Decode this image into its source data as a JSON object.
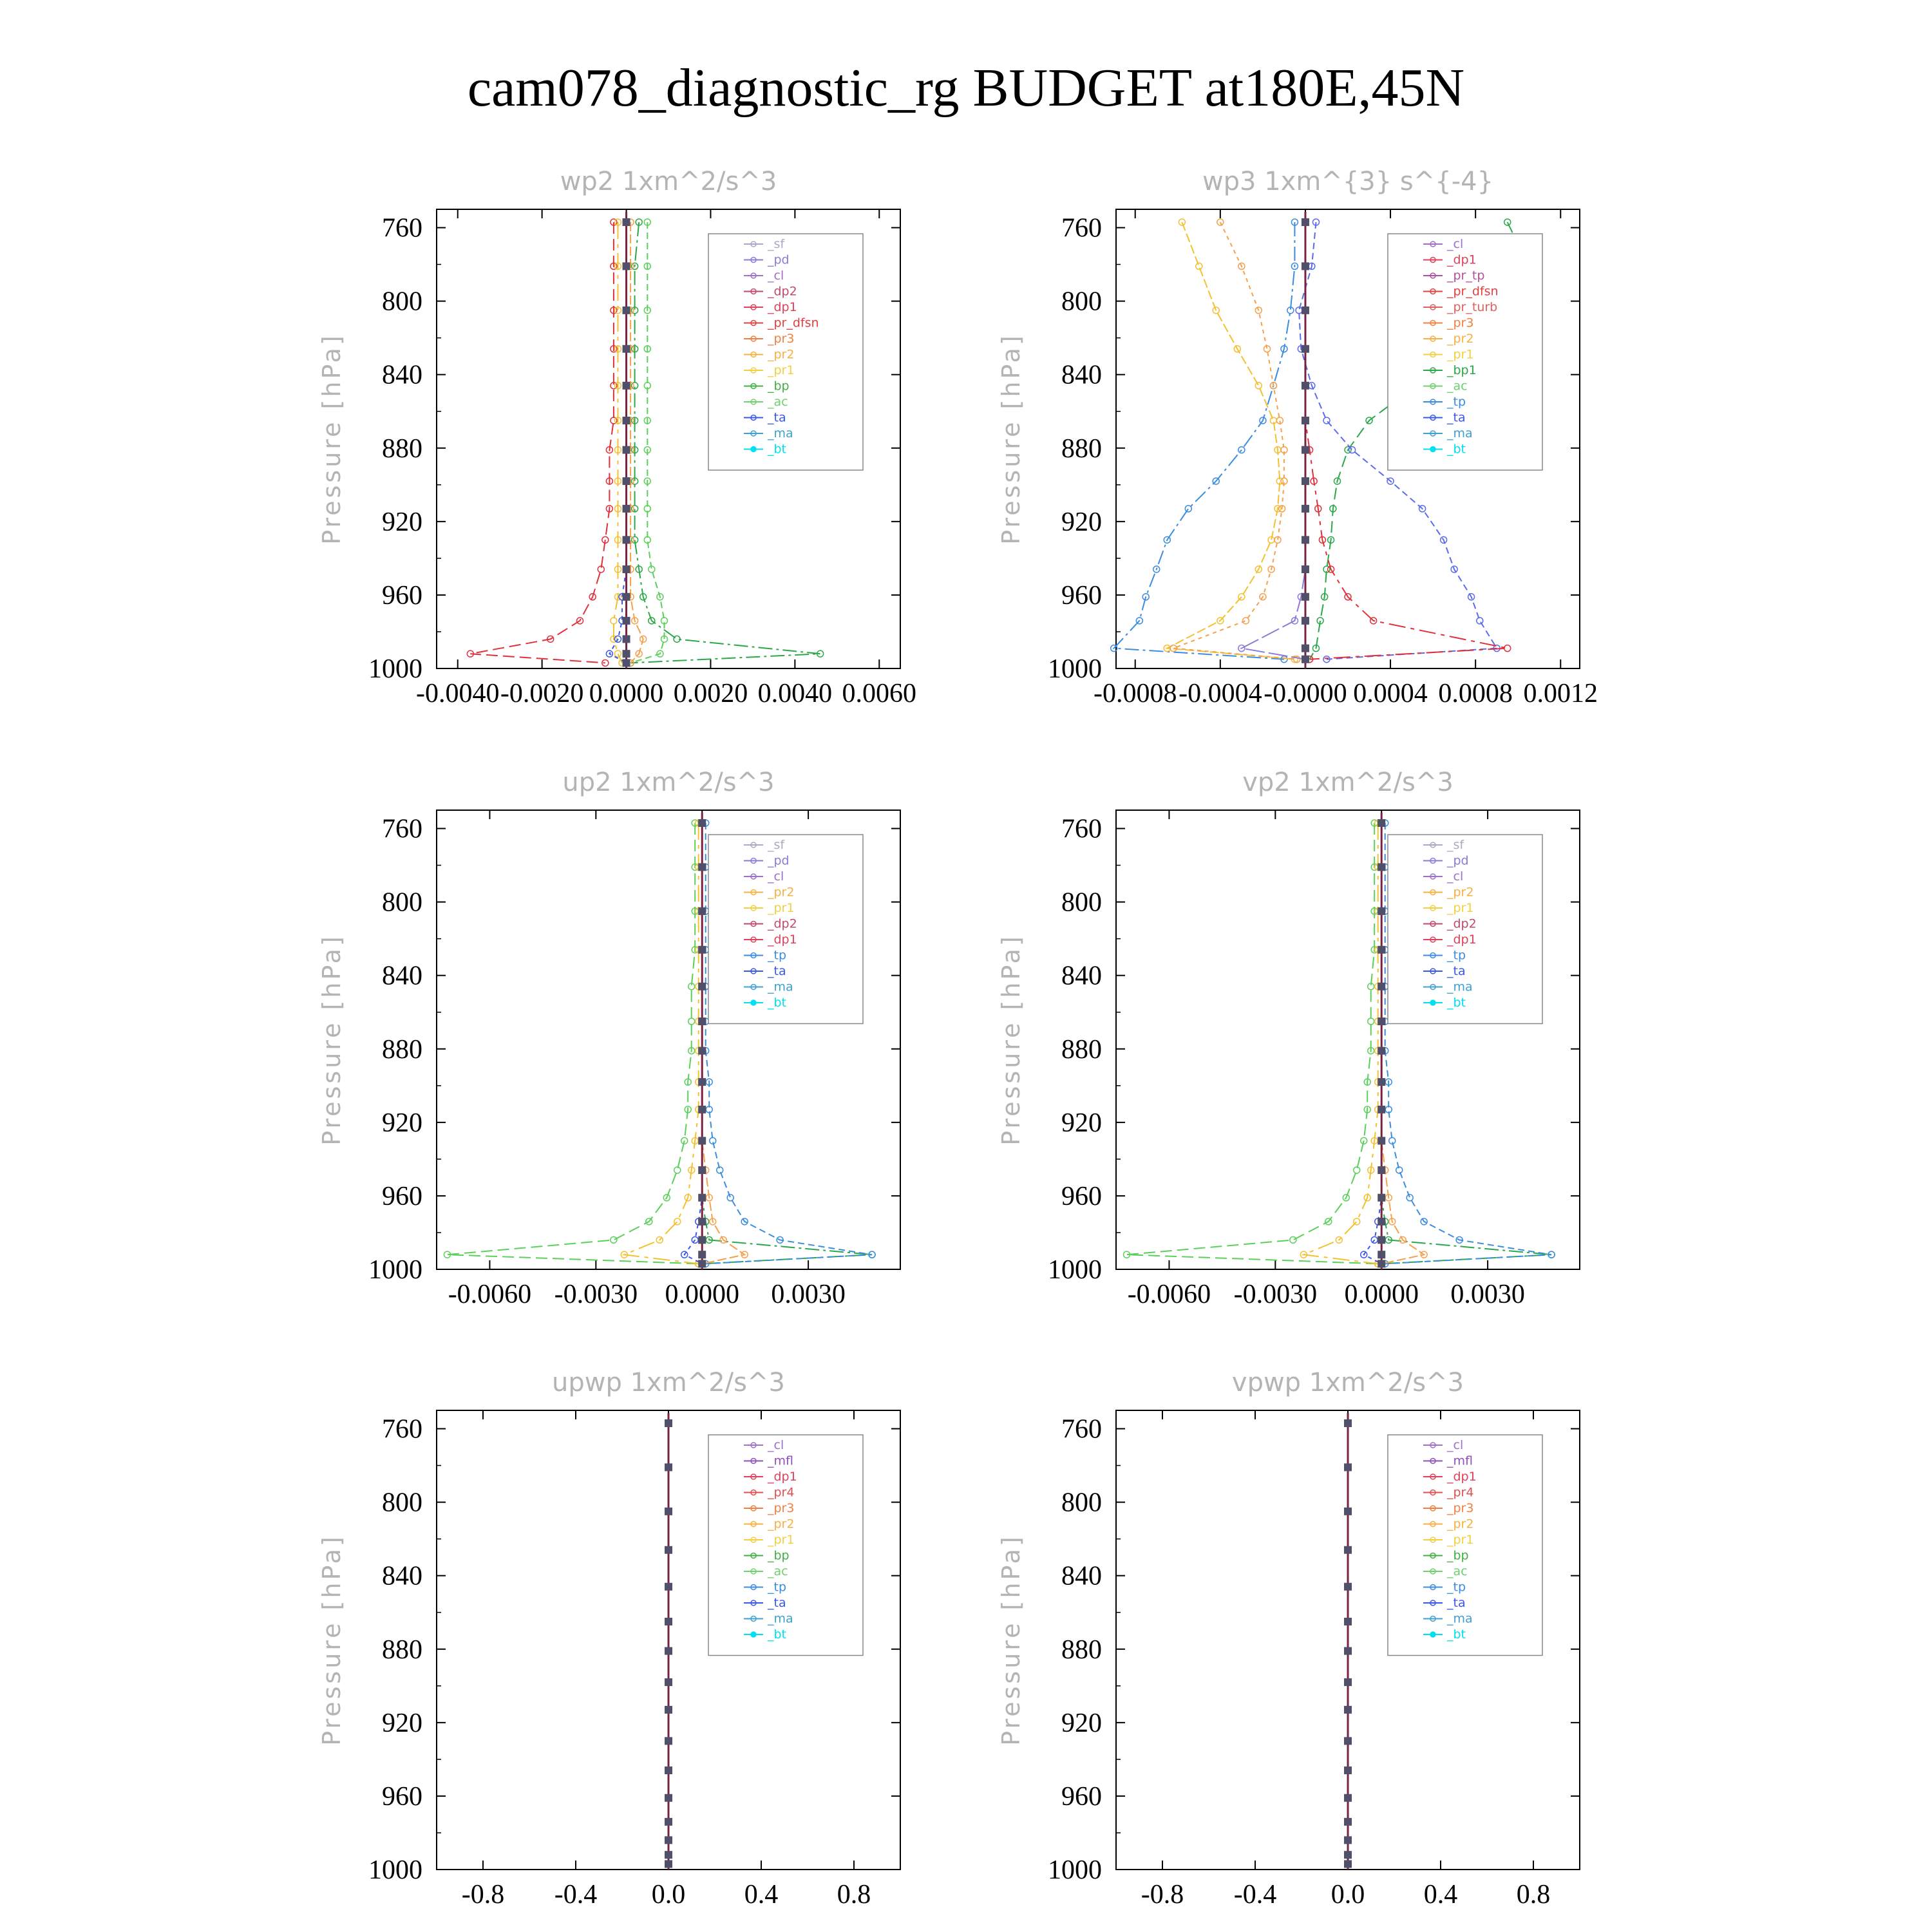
{
  "title": "cam078_diagnostic_rg  BUDGET at180E,45N",
  "chart_data": [
    {
      "type": "line",
      "title": "wp2   1xm^2/s^3",
      "ylabel": "Pressure [hPa]",
      "xlim": [
        -0.0045,
        0.0065
      ],
      "ylim": [
        1000,
        750
      ],
      "xticks": [
        "-0.0040",
        "-0.0020",
        "0.0000",
        "0.0020",
        "0.0040",
        "0.0060"
      ],
      "yticks": [
        "760",
        "800",
        "840",
        "880",
        "920",
        "960",
        "1000"
      ],
      "legend": [
        "_sf",
        "_pd",
        "_cl",
        "_dp2",
        "_dp1",
        "_pr_dfsn",
        "_pr3",
        "_pr2",
        "_pr1",
        "_bp",
        "_ac",
        "_ta",
        "_ma",
        "_bt"
      ],
      "y": [
        757,
        781,
        805,
        826,
        846,
        865,
        881,
        898,
        913,
        930,
        946,
        961,
        974,
        984,
        992,
        997
      ],
      "series": [
        {
          "name": "_dp1",
          "color": "#e0303c",
          "values": [
            -0.0003,
            -0.0003,
            -0.0003,
            -0.0003,
            -0.0003,
            -0.0003,
            -0.0004,
            -0.0004,
            -0.0004,
            -0.0005,
            -0.0006,
            -0.0008,
            -0.0011,
            -0.0018,
            -0.0037,
            -0.0005
          ]
        },
        {
          "name": "_pr1",
          "color": "#2aa848",
          "values": [
            0.0003,
            0.0002,
            0.0002,
            0.0002,
            0.0002,
            0.0002,
            0.0002,
            0.0002,
            0.0002,
            0.0002,
            0.0003,
            0.0004,
            0.0006,
            0.0012,
            0.0046,
            0.0001
          ]
        },
        {
          "name": "_ac",
          "color": "#5ad05a",
          "values": [
            0.0005,
            0.0005,
            0.0005,
            0.0005,
            0.0005,
            0.0005,
            0.0005,
            0.0005,
            0.0005,
            0.0005,
            0.0006,
            0.0008,
            0.0009,
            0.0009,
            0.0008,
            0.0001
          ]
        },
        {
          "name": "_pr2",
          "color": "#f4c030",
          "values": [
            -0.0002,
            -0.0002,
            -0.0002,
            -0.0002,
            -0.0002,
            -0.0002,
            -0.0002,
            -0.0002,
            -0.0002,
            -0.0002,
            -0.0002,
            -0.0002,
            -0.0003,
            -0.0003,
            -0.0002,
            -0.0001
          ]
        },
        {
          "name": "_pr3",
          "color": "#f5a04a",
          "values": [
            0.0001,
            0.0001,
            0.0001,
            0.0001,
            0.0001,
            0.0001,
            0.0001,
            0.0001,
            0.0001,
            0.0001,
            0.0001,
            0.0001,
            0.0002,
            0.0004,
            0.0003,
            0.0001
          ]
        },
        {
          "name": "_ta",
          "color": "#3a58e8",
          "values": [
            0,
            0,
            0,
            0,
            0,
            0,
            0,
            0,
            0,
            0,
            0,
            -0.0001,
            -0.0001,
            -0.0002,
            -0.0004,
            0
          ]
        },
        {
          "name": "_bt",
          "color": "#404060",
          "values": [
            0,
            0,
            0,
            0,
            0,
            0,
            0,
            0,
            0,
            0,
            0,
            0,
            0,
            0,
            0,
            0
          ]
        }
      ]
    },
    {
      "type": "line",
      "title": "wp3   1xm^{3} s^{-4}",
      "ylabel": "Pressure [hPa]",
      "xlim": [
        -0.00089,
        0.00129
      ],
      "ylim": [
        1000,
        750
      ],
      "xticks": [
        "-0.0008",
        "-0.0004",
        "-0.0000",
        "0.0004",
        "0.0008",
        "0.0012"
      ],
      "yticks": [
        "760",
        "800",
        "840",
        "880",
        "920",
        "960",
        "1000"
      ],
      "legend": [
        "_cl",
        "_dp1",
        "_pr_tp",
        "_pr_dfsn",
        "_pr_turb",
        "_pr3",
        "_pr2",
        "_pr1",
        "_bp1",
        "_ac",
        "_tp",
        "_ta",
        "_ma",
        "_bt"
      ],
      "y": [
        757,
        781,
        805,
        826,
        846,
        865,
        881,
        898,
        913,
        930,
        946,
        961,
        974,
        989,
        995
      ],
      "series": [
        {
          "name": "_pr1",
          "color": "#2aa848",
          "values": [
            0.00095,
            0.00105,
            0.00095,
            0.00078,
            0.00052,
            0.0003,
            0.0002,
            0.00015,
            0.00013,
            0.00012,
            0.0001,
            9e-05,
            7e-05,
            5e-05,
            2e-05
          ]
        },
        {
          "name": "_tp",
          "color": "#3a8ce0",
          "values": [
            -5e-05,
            -5e-05,
            -7e-05,
            -0.0001,
            -0.00015,
            -0.0002,
            -0.0003,
            -0.00042,
            -0.00055,
            -0.00065,
            -0.0007,
            -0.00075,
            -0.00078,
            -0.0009,
            -0.0001
          ]
        },
        {
          "name": "_ta",
          "color": "#5a6aee",
          "values": [
            5e-05,
            3e-05,
            -3e-05,
            -2e-05,
            3e-05,
            0.0001,
            0.00022,
            0.0004,
            0.00055,
            0.00065,
            0.0007,
            0.00078,
            0.00082,
            0.0009,
            0.0001
          ]
        },
        {
          "name": "_dp1",
          "color": "#e0303c",
          "values": [
            0,
            0,
            0,
            0,
            0,
            0,
            2e-05,
            4e-05,
            6e-05,
            8e-05,
            0.00012,
            0.0002,
            0.00032,
            0.00095,
            2e-05
          ]
        },
        {
          "name": "_pr2",
          "color": "#f4c030",
          "values": [
            -0.00058,
            -0.0005,
            -0.00042,
            -0.00032,
            -0.00022,
            -0.00015,
            -0.00013,
            -0.00012,
            -0.00013,
            -0.00016,
            -0.00022,
            -0.0003,
            -0.0004,
            -0.00065,
            -5e-05
          ]
        },
        {
          "name": "_pr3",
          "color": "#f5a04a",
          "values": [
            -0.0004,
            -0.0003,
            -0.00022,
            -0.00018,
            -0.00015,
            -0.00012,
            -0.0001,
            -0.0001,
            -0.00011,
            -0.00013,
            -0.00016,
            -0.0002,
            -0.00028,
            -0.00062,
            -4e-05
          ]
        },
        {
          "name": "_cl",
          "color": "#8c7ad6",
          "values": [
            0,
            0,
            0,
            0,
            0,
            0,
            0,
            0,
            0,
            0,
            0,
            -2e-05,
            -5e-05,
            -0.0003,
            0
          ]
        },
        {
          "name": "_bt",
          "color": "#404060",
          "values": [
            0,
            0,
            0,
            0,
            0,
            0,
            0,
            0,
            0,
            0,
            0,
            0,
            0,
            0,
            0
          ]
        }
      ]
    },
    {
      "type": "line",
      "title": "up2   1xm^2/s^3",
      "ylabel": "Pressure [hPa]",
      "xlim": [
        -0.0075,
        0.0056
      ],
      "ylim": [
        1000,
        750
      ],
      "xticks": [
        "-0.0060",
        "-0.0030",
        "0.0000",
        "0.0030"
      ],
      "yticks": [
        "760",
        "800",
        "840",
        "880",
        "920",
        "960",
        "1000"
      ],
      "legend": [
        "_sf",
        "_pd",
        "_cl",
        "_pr2",
        "_pr1",
        "_dp2",
        "_dp1",
        "_tp",
        "_ta",
        "_ma",
        "_bt"
      ],
      "y": [
        757,
        781,
        805,
        826,
        846,
        865,
        881,
        898,
        913,
        930,
        946,
        961,
        974,
        984,
        992,
        997
      ],
      "series": [
        {
          "name": "_dp1",
          "color": "#5ad05a",
          "values": [
            -0.0002,
            -0.0002,
            -0.0002,
            -0.0002,
            -0.0003,
            -0.0003,
            -0.0003,
            -0.0004,
            -0.0004,
            -0.0005,
            -0.0007,
            -0.001,
            -0.0015,
            -0.0025,
            -0.0072,
            -0.0001
          ]
        },
        {
          "name": "_dp2",
          "color": "#2aa848",
          "values": [
            0,
            0,
            0,
            0,
            0,
            0,
            0,
            0,
            0,
            0,
            0,
            0,
            0.0001,
            0.0002,
            0.0048,
            0
          ]
        },
        {
          "name": "_tp",
          "color": "#3a8ce0",
          "values": [
            0.0001,
            0.0001,
            0.0001,
            0.0001,
            0.0001,
            0.0001,
            0.0001,
            0.0002,
            0.0002,
            0.0003,
            0.0005,
            0.0008,
            0.0012,
            0.0022,
            0.0048,
            0.0001
          ]
        },
        {
          "name": "_pr1",
          "color": "#f4c030",
          "values": [
            -0.0001,
            -0.0001,
            -0.0001,
            -0.0001,
            -0.0001,
            -0.0001,
            -0.0001,
            -0.0001,
            -0.0001,
            -0.0002,
            -0.0003,
            -0.0004,
            -0.0007,
            -0.0012,
            -0.0022,
            -0.0001
          ]
        },
        {
          "name": "_pr2",
          "color": "#f5a04a",
          "values": [
            0,
            0,
            0,
            0,
            0,
            0,
            0,
            0,
            0,
            0,
            0.0001,
            0.0002,
            0.0003,
            0.0006,
            0.0012,
            0
          ]
        },
        {
          "name": "_ta",
          "color": "#3a58e8",
          "values": [
            0,
            0,
            0,
            0,
            0,
            0,
            0,
            0,
            0,
            0,
            0,
            0,
            -0.0001,
            -0.0002,
            -0.0005,
            0
          ]
        },
        {
          "name": "_bt",
          "color": "#404060",
          "values": [
            0,
            0,
            0,
            0,
            0,
            0,
            0,
            0,
            0,
            0,
            0,
            0,
            0,
            0,
            0,
            0
          ]
        }
      ]
    },
    {
      "type": "line",
      "title": "vp2   1xm^2/s^3",
      "ylabel": "Pressure [hPa]",
      "xlim": [
        -0.0075,
        0.0056
      ],
      "ylim": [
        1000,
        750
      ],
      "xticks": [
        "-0.0060",
        "-0.0030",
        "0.0000",
        "0.0030"
      ],
      "yticks": [
        "760",
        "800",
        "840",
        "880",
        "920",
        "960",
        "1000"
      ],
      "legend": [
        "_sf",
        "_pd",
        "_cl",
        "_pr2",
        "_pr1",
        "_dp2",
        "_dp1",
        "_tp",
        "_ta",
        "_ma",
        "_bt"
      ],
      "y": [
        757,
        781,
        805,
        826,
        846,
        865,
        881,
        898,
        913,
        930,
        946,
        961,
        974,
        984,
        992,
        997
      ],
      "series": [
        {
          "name": "_dp1",
          "color": "#5ad05a",
          "values": [
            -0.0002,
            -0.0002,
            -0.0002,
            -0.0002,
            -0.0003,
            -0.0003,
            -0.0003,
            -0.0004,
            -0.0004,
            -0.0005,
            -0.0007,
            -0.001,
            -0.0015,
            -0.0025,
            -0.0072,
            -0.0001
          ]
        },
        {
          "name": "_dp2",
          "color": "#2aa848",
          "values": [
            0,
            0,
            0,
            0,
            0,
            0,
            0,
            0,
            0,
            0,
            0,
            0,
            0.0001,
            0.0002,
            0.0048,
            0
          ]
        },
        {
          "name": "_tp",
          "color": "#3a8ce0",
          "values": [
            0.0001,
            0.0001,
            0.0001,
            0.0001,
            0.0001,
            0.0001,
            0.0001,
            0.0002,
            0.0002,
            0.0003,
            0.0005,
            0.0008,
            0.0012,
            0.0022,
            0.0048,
            0.0001
          ]
        },
        {
          "name": "_pr1",
          "color": "#f4c030",
          "values": [
            -0.0001,
            -0.0001,
            -0.0001,
            -0.0001,
            -0.0001,
            -0.0001,
            -0.0001,
            -0.0001,
            -0.0001,
            -0.0002,
            -0.0003,
            -0.0004,
            -0.0007,
            -0.0012,
            -0.0022,
            -0.0001
          ]
        },
        {
          "name": "_pr2",
          "color": "#f5a04a",
          "values": [
            0,
            0,
            0,
            0,
            0,
            0,
            0,
            0,
            0,
            0,
            0.0001,
            0.0002,
            0.0003,
            0.0006,
            0.0012,
            0
          ]
        },
        {
          "name": "_ta",
          "color": "#3a58e8",
          "values": [
            0,
            0,
            0,
            0,
            0,
            0,
            0,
            0,
            0,
            0,
            0,
            0,
            -0.0001,
            -0.0002,
            -0.0005,
            0
          ]
        },
        {
          "name": "_bt",
          "color": "#404060",
          "values": [
            0,
            0,
            0,
            0,
            0,
            0,
            0,
            0,
            0,
            0,
            0,
            0,
            0,
            0,
            0,
            0
          ]
        }
      ]
    },
    {
      "type": "line",
      "title": "upwp   1xm^2/s^3",
      "ylabel": "Pressure [hPa]",
      "xlim": [
        -1.0,
        1.0
      ],
      "ylim": [
        1000,
        750
      ],
      "xticks": [
        "-0.8",
        "-0.4",
        "0.0",
        "0.4",
        "0.8"
      ],
      "yticks": [
        "760",
        "800",
        "840",
        "880",
        "920",
        "960",
        "1000"
      ],
      "legend": [
        "_cl",
        "_mfl",
        "_dp1",
        "_pr4",
        "_pr3",
        "_pr2",
        "_pr1",
        "_bp",
        "_ac",
        "_tp",
        "_ta",
        "_ma",
        "_bt"
      ],
      "y": [
        757,
        781,
        805,
        826,
        846,
        865,
        881,
        898,
        913,
        930,
        946,
        961,
        974,
        984,
        992,
        997
      ],
      "series": [
        {
          "name": "_dp1",
          "color": "#a02050",
          "values": [
            0,
            0,
            0,
            0,
            0,
            0,
            0,
            0,
            0,
            0,
            0,
            0,
            0,
            0,
            0,
            0
          ]
        },
        {
          "name": "_bt",
          "color": "#404060",
          "values": [
            0,
            0,
            0,
            0,
            0,
            0,
            0,
            0,
            0,
            0,
            0,
            0,
            0,
            0,
            0,
            0
          ]
        }
      ]
    },
    {
      "type": "line",
      "title": "vpwp   1xm^2/s^3",
      "ylabel": "Pressure [hPa]",
      "xlim": [
        -1.0,
        1.0
      ],
      "ylim": [
        1000,
        750
      ],
      "xticks": [
        "-0.8",
        "-0.4",
        "0.0",
        "0.4",
        "0.8"
      ],
      "yticks": [
        "760",
        "800",
        "840",
        "880",
        "920",
        "960",
        "1000"
      ],
      "legend": [
        "_cl",
        "_mfl",
        "_dp1",
        "_pr4",
        "_pr3",
        "_pr2",
        "_pr1",
        "_bp",
        "_ac",
        "_tp",
        "_ta",
        "_ma",
        "_bt"
      ],
      "y": [
        757,
        781,
        805,
        826,
        846,
        865,
        881,
        898,
        913,
        930,
        946,
        961,
        974,
        984,
        992,
        997
      ],
      "series": [
        {
          "name": "_dp1",
          "color": "#a02050",
          "values": [
            0,
            0,
            0,
            0,
            0,
            0,
            0,
            0,
            0,
            0,
            0,
            0,
            0,
            0,
            0,
            0
          ]
        },
        {
          "name": "_bt",
          "color": "#404060",
          "values": [
            0,
            0,
            0,
            0,
            0,
            0,
            0,
            0,
            0,
            0,
            0,
            0,
            0,
            0,
            0,
            0
          ]
        }
      ]
    }
  ],
  "legend_colors": {
    "_sf": "#a8a8c8",
    "_pd": "#8c7ad6",
    "_cl": "#a070c8",
    "_mfl": "#9050b8",
    "_dp2": "#c04a6a",
    "_dp1": "#e0405a",
    "_pr_tp": "#b050a0",
    "_pr_dfsn": "#e04040",
    "_pr_turb": "#e06060",
    "_pr4": "#e05050",
    "_pr3": "#f08040",
    "_pr2": "#f5b040",
    "_pr1": "#f0d040",
    "_bp": "#40b040",
    "_bp1": "#2aa848",
    "_ac": "#70d070",
    "_tp": "#3a8ce0",
    "_ta": "#3a58e8",
    "_ma": "#40a0d0",
    "_bt": "#00e0f0"
  }
}
